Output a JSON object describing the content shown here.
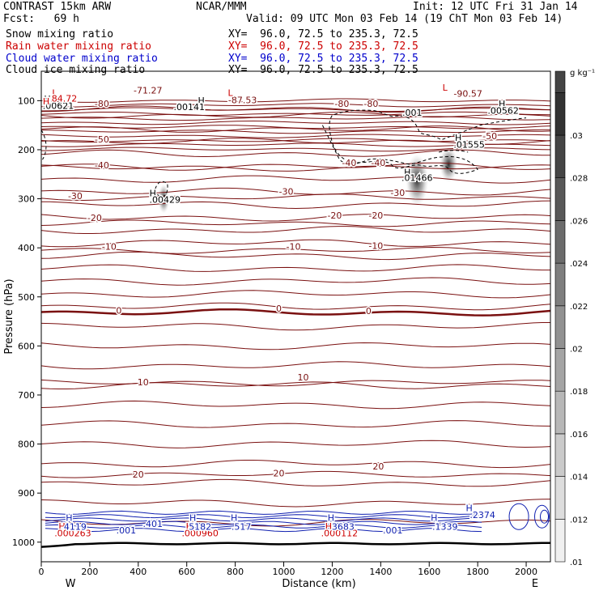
{
  "header": {
    "model": "CONTRAST 15km ARW",
    "org": "NCAR/MMM",
    "init": "Init: 12 UTC Fri 31 Jan 14",
    "fcst": "Fcst:   69 h",
    "valid": "Valid: 09 UTC Mon 03 Feb 14 (19 ChT Mon 03 Feb 14)"
  },
  "fields": [
    {
      "name": "Snow mixing ratio",
      "xy": "XY=  96.0, 72.5 to 235.3, 72.5",
      "color": "#000000"
    },
    {
      "name": "Rain water mixing ratio",
      "xy": "XY=  96.0, 72.5 to 235.3, 72.5",
      "color": "#cc0000"
    },
    {
      "name": "Cloud water mixing ratio",
      "xy": "XY=  96.0, 72.5 to 235.3, 72.5",
      "color": "#0000cc"
    },
    {
      "name": "Cloud ice mixing ratio",
      "xy": "XY=  96.0, 72.5 to 235.3, 72.5",
      "color": "#000000"
    }
  ],
  "chart_data": {
    "type": "cross-section contour",
    "xlabel": "Distance (km)",
    "ylabel": "Pressure (hPa)",
    "xlim": [
      0,
      2100
    ],
    "ylim": [
      1040,
      40
    ],
    "x_ticks": [
      0,
      200,
      400,
      600,
      800,
      1000,
      1200,
      1400,
      1600,
      1800,
      2000
    ],
    "y_ticks": [
      100,
      200,
      300,
      400,
      500,
      600,
      700,
      800,
      900,
      1000
    ],
    "x_end_labels": {
      "left": "W",
      "right": "E"
    },
    "colorbar": {
      "units": "g kg⁻¹",
      "levels": [
        0.01,
        0.012,
        0.014,
        0.016,
        0.018,
        0.02,
        0.022,
        0.024,
        0.026,
        0.028,
        0.03
      ],
      "labels": [
        ".01",
        ".012",
        ".014",
        ".016",
        ".018",
        ".02",
        ".022",
        ".024",
        ".026",
        ".028",
        ".03"
      ]
    },
    "temperature_contours": [
      {
        "value": -80,
        "p": 130
      },
      {
        "value": -70,
        "p": 117
      },
      {
        "value": -60,
        "p": 158
      },
      {
        "value": -50,
        "p": 183
      },
      {
        "value": -40,
        "p": 237
      },
      {
        "value": -30,
        "p": 297
      },
      {
        "value": -20,
        "p": 350
      },
      {
        "value": -10,
        "p": 405
      },
      {
        "value": 0,
        "p": 532
      },
      {
        "value": 10,
        "p": 675
      },
      {
        "value": 20,
        "p": 862
      }
    ],
    "temperature_labels": [
      {
        "text": "-71.27",
        "x": 440,
        "p": 85
      },
      {
        "text": "-87.53",
        "x": 830,
        "p": 105
      },
      {
        "text": "-90.57",
        "x": 1760,
        "p": 92
      },
      {
        "text": "-80",
        "x": 250,
        "p": 113
      },
      {
        "text": "-80",
        "x": 1240,
        "p": 113
      },
      {
        "text": "-80",
        "x": 1360,
        "p": 113
      },
      {
        "text": "-50",
        "x": 250,
        "p": 185
      },
      {
        "text": "-50",
        "x": 1850,
        "p": 179
      },
      {
        "text": "-40",
        "x": 250,
        "p": 238
      },
      {
        "text": "-40",
        "x": 1270,
        "p": 233
      },
      {
        "text": "-40",
        "x": 1390,
        "p": 233
      },
      {
        "text": "-30",
        "x": 140,
        "p": 301
      },
      {
        "text": "-30",
        "x": 1010,
        "p": 292
      },
      {
        "text": "-30",
        "x": 1470,
        "p": 294
      },
      {
        "text": "-20",
        "x": 220,
        "p": 345
      },
      {
        "text": "-20",
        "x": 1210,
        "p": 340
      },
      {
        "text": "-20",
        "x": 1380,
        "p": 340
      },
      {
        "text": "-10",
        "x": 280,
        "p": 404
      },
      {
        "text": "-10",
        "x": 1040,
        "p": 404
      },
      {
        "text": "-10",
        "x": 1380,
        "p": 402
      },
      {
        "text": "0",
        "x": 320,
        "p": 534
      },
      {
        "text": "0",
        "x": 980,
        "p": 530
      },
      {
        "text": "0",
        "x": 1350,
        "p": 535
      },
      {
        "text": "10",
        "x": 420,
        "p": 680
      },
      {
        "text": "10",
        "x": 1080,
        "p": 670
      },
      {
        "text": "20",
        "x": 400,
        "p": 868
      },
      {
        "text": "20",
        "x": 980,
        "p": 866
      },
      {
        "text": "20",
        "x": 1390,
        "p": 852
      }
    ],
    "ice_markers": [
      {
        "text": "H",
        "x": 25,
        "p": 103
      },
      {
        "text": ".00621",
        "x": 70,
        "p": 117
      },
      {
        "text": "H",
        "x": 660,
        "p": 106
      },
      {
        "text": ".00141",
        "x": 610,
        "p": 119
      },
      {
        "text": "H",
        "x": 460,
        "p": 295
      },
      {
        "text": ".00429",
        "x": 510,
        "p": 308
      },
      {
        "text": "H",
        "x": 1510,
        "p": 252
      },
      {
        "text": ".01466",
        "x": 1550,
        "p": 264
      },
      {
        "text": "H",
        "x": 1720,
        "p": 182
      },
      {
        "text": ".01555",
        "x": 1765,
        "p": 196
      },
      {
        "text": "H",
        "x": 1900,
        "p": 113
      },
      {
        "text": ".00562",
        "x": 1905,
        "p": 127
      },
      {
        "text": ".001",
        "x": 1530,
        "p": 131
      }
    ],
    "rain_markers": [
      {
        "text": "L",
        "x": 55,
        "p": 90
      },
      {
        "text": "H",
        "x": 20,
        "p": 108
      },
      {
        "text": "84.72",
        "x": 95,
        "p": 102
      },
      {
        "text": "L",
        "x": 780,
        "p": 90
      },
      {
        "text": "L",
        "x": 1665,
        "p": 80
      },
      {
        "text": "H",
        "x": 85,
        "p": 974
      },
      {
        "text": ".000263",
        "x": 130,
        "p": 988
      },
      {
        "text": "H",
        "x": 610,
        "p": 974
      },
      {
        "text": ".000960",
        "x": 655,
        "p": 988
      },
      {
        "text": "H",
        "x": 1185,
        "p": 974
      },
      {
        "text": ".000112",
        "x": 1230,
        "p": 988
      }
    ],
    "cloud_water_markers": [
      {
        "text": "H",
        "x": 115,
        "p": 957
      },
      {
        "text": "4119",
        "x": 140,
        "p": 975
      },
      {
        "text": ".001",
        "x": 350,
        "p": 982
      },
      {
        "text": ".401",
        "x": 460,
        "p": 969
      },
      {
        "text": "H",
        "x": 625,
        "p": 957
      },
      {
        "text": "5182",
        "x": 655,
        "p": 975
      },
      {
        "text": "H",
        "x": 795,
        "p": 957
      },
      {
        "text": ".517",
        "x": 825,
        "p": 975
      },
      {
        "text": "H",
        "x": 1195,
        "p": 957
      },
      {
        "text": "3683",
        "x": 1245,
        "p": 975
      },
      {
        "text": ".001",
        "x": 1450,
        "p": 982
      },
      {
        "text": "H",
        "x": 1620,
        "p": 957
      },
      {
        "text": ".1339",
        "x": 1665,
        "p": 975
      },
      {
        "text": "H",
        "x": 1765,
        "p": 937
      },
      {
        "text": ".2374",
        "x": 1820,
        "p": 951
      }
    ]
  }
}
